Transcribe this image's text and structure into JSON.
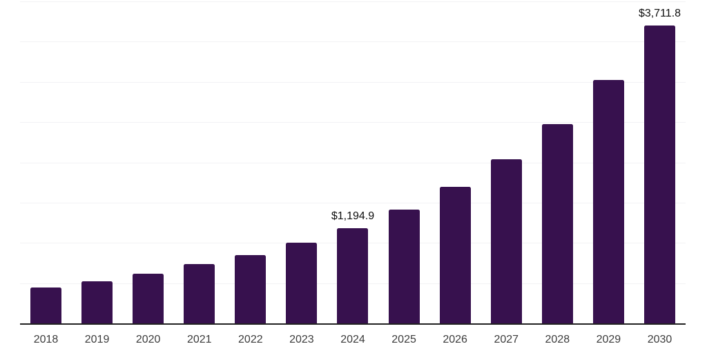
{
  "chart_data": {
    "type": "bar",
    "title": "",
    "xlabel": "",
    "ylabel": "",
    "categories": [
      "2018",
      "2019",
      "2020",
      "2021",
      "2022",
      "2023",
      "2024",
      "2025",
      "2026",
      "2027",
      "2028",
      "2029",
      "2030"
    ],
    "values": [
      450,
      528,
      628,
      742,
      859,
      1011,
      1194.9,
      1425,
      1705,
      2046,
      2480,
      3032,
      3711.8
    ],
    "labeled_points": [
      {
        "year": "2024",
        "label": "$1,194.9"
      },
      {
        "year": "2030",
        "label": "$3,711.8"
      }
    ],
    "ylim": [
      0,
      4000
    ],
    "gridline_step": 500,
    "grid": true,
    "legend": false,
    "colors": {
      "bar": "#37114e",
      "gridline": "#f2f2f4",
      "axis": "#212121",
      "value_label": "#0d0d0d",
      "tick_label": "#3c3c3c",
      "background": "#ffffff"
    }
  }
}
